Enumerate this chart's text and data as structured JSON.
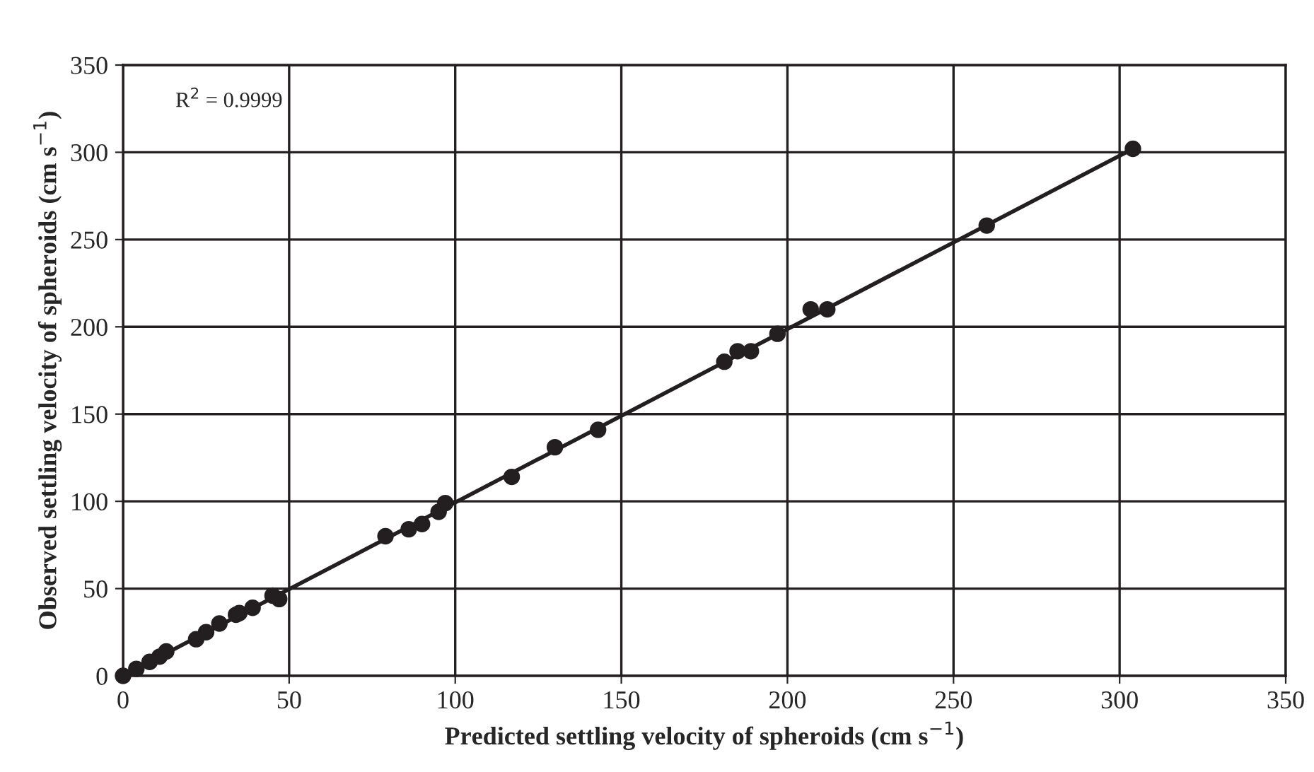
{
  "chart_data": {
    "type": "scatter",
    "xlabel": "Predicted settling velocity of spheroids (cm s$^{−1}$)",
    "ylabel": "Observed settling velocity of spheroids (cm s$^{−1}$)",
    "annotations": [
      "R$^{2}$ = 0.9999"
    ],
    "series": [
      {
        "color": "#231f20",
        "marker": "circle",
        "x": [
          0,
          4,
          8,
          11,
          13,
          22,
          25,
          29,
          34,
          35,
          39,
          45,
          47,
          79,
          86,
          90,
          95,
          97,
          117,
          130,
          143,
          181,
          185,
          189,
          197,
          207,
          212,
          260,
          304
        ],
        "values": [
          0,
          4,
          8,
          11,
          14,
          21,
          25,
          30,
          35,
          36,
          39,
          46,
          44,
          80,
          84,
          87,
          94,
          99,
          114,
          131,
          141,
          180,
          186,
          186,
          196,
          210,
          210,
          258,
          302
        ]
      },
      {
        "type": "line",
        "color": "#231f20",
        "line_style": "solid",
        "x": [
          0,
          304
        ],
        "values": [
          0,
          302
        ]
      }
    ],
    "xlim": [
      0,
      350
    ],
    "ylim": [
      0,
      350
    ],
    "xticks": [
      0,
      50,
      100,
      150,
      200,
      250,
      300,
      350
    ],
    "yticks": [
      0,
      50,
      100,
      150,
      200,
      250,
      300,
      350
    ],
    "grid": true,
    "legend": false
  }
}
